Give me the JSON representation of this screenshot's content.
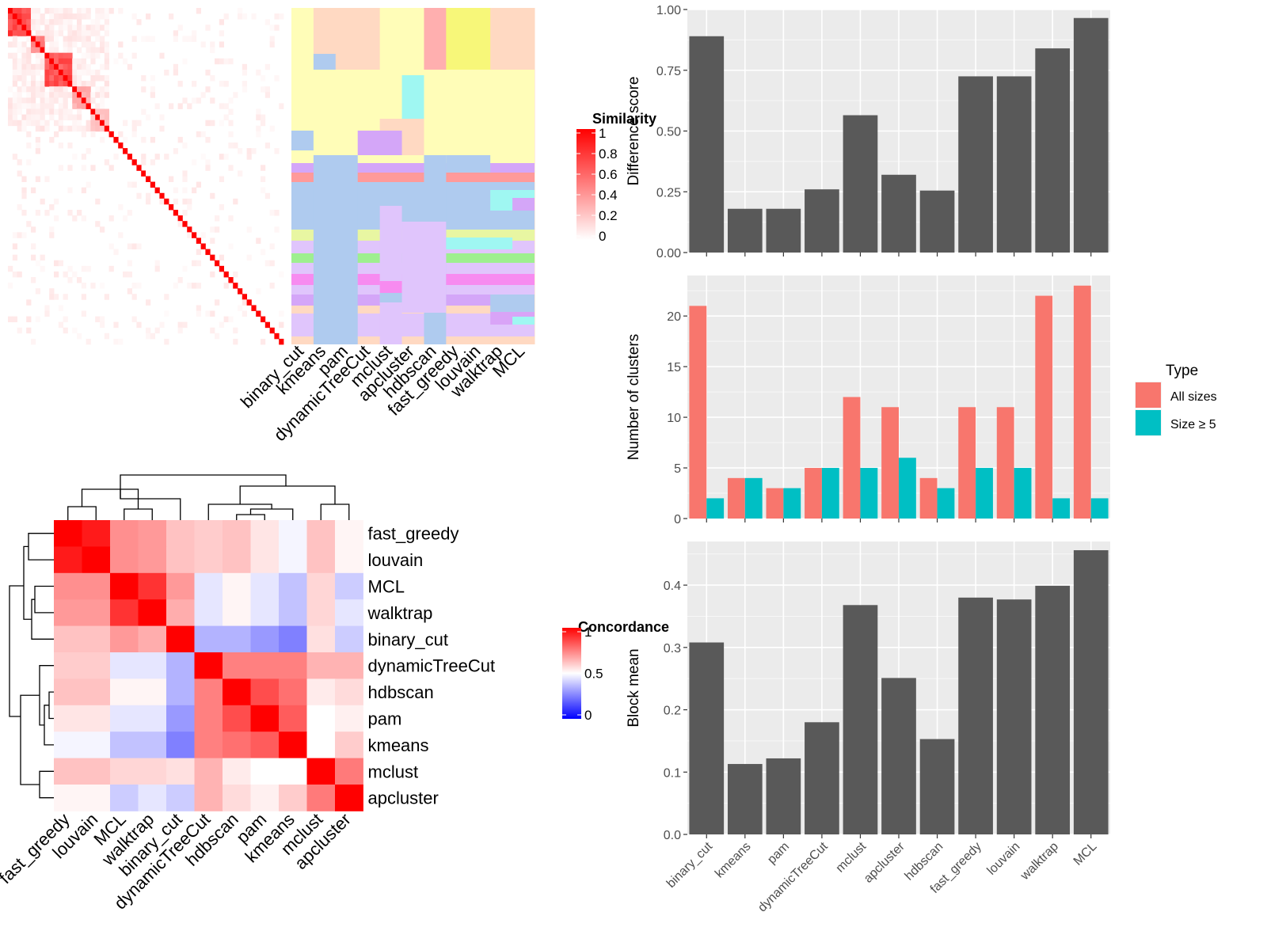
{
  "chart_data": [
    {
      "id": "similarity-heatmap",
      "type": "heatmap",
      "title": "",
      "legend_title": "Similarity",
      "legend_ticks": [
        "1",
        "0.8",
        "0.6",
        "0.4",
        "0.2",
        "0"
      ],
      "colors": {
        "high": "#FF0000",
        "low": "#FFFFFF"
      },
      "blocks": [
        {
          "size": 5,
          "level": 0.8
        },
        {
          "size": 3,
          "level": 0.55
        },
        {
          "size": 6,
          "level": 0.75
        },
        {
          "size": 4,
          "level": 0.35
        },
        {
          "size": 4,
          "level": 0.25
        }
      ],
      "total_rows": 60
    },
    {
      "id": "cluster-assignment-heatmap",
      "type": "heatmap",
      "title": "",
      "columns": [
        "binary_cut",
        "kmeans",
        "pam",
        "dynamicTreeCut",
        "mclust",
        "apcluster",
        "hdbscan",
        "fast_greedy",
        "louvain",
        "walktrap",
        "MCL"
      ]
    },
    {
      "id": "concordance-heatmap",
      "type": "heatmap",
      "title": "",
      "legend_title": "Concordance",
      "legend_ticks": [
        "1",
        "0.5",
        "0"
      ],
      "colors": {
        "high": "#FF0000",
        "mid": "#FFFFFF",
        "low": "#0000FF"
      },
      "rows": [
        "fast_greedy",
        "louvain",
        "MCL",
        "walktrap",
        "binary_cut",
        "dynamicTreeCut",
        "hdbscan",
        "pam",
        "kmeans",
        "mclust",
        "apcluster"
      ],
      "columns": [
        "fast_greedy",
        "louvain",
        "MCL",
        "walktrap",
        "binary_cut",
        "dynamicTreeCut",
        "hdbscan",
        "pam",
        "kmeans",
        "mclust",
        "apcluster"
      ],
      "values": [
        [
          1.0,
          0.95,
          0.72,
          0.7,
          0.62,
          0.6,
          0.62,
          0.55,
          0.48,
          0.62,
          0.52
        ],
        [
          0.95,
          1.0,
          0.72,
          0.7,
          0.62,
          0.6,
          0.62,
          0.55,
          0.48,
          0.62,
          0.52
        ],
        [
          0.72,
          0.72,
          1.0,
          0.9,
          0.7,
          0.45,
          0.52,
          0.45,
          0.38,
          0.58,
          0.4
        ],
        [
          0.7,
          0.7,
          0.9,
          1.0,
          0.66,
          0.45,
          0.52,
          0.45,
          0.38,
          0.58,
          0.45
        ],
        [
          0.62,
          0.62,
          0.7,
          0.66,
          1.0,
          0.35,
          0.35,
          0.3,
          0.25,
          0.56,
          0.4
        ],
        [
          0.6,
          0.6,
          0.45,
          0.45,
          0.35,
          1.0,
          0.75,
          0.75,
          0.75,
          0.65,
          0.65
        ],
        [
          0.62,
          0.62,
          0.52,
          0.52,
          0.35,
          0.75,
          1.0,
          0.85,
          0.78,
          0.54,
          0.57
        ],
        [
          0.55,
          0.55,
          0.45,
          0.45,
          0.3,
          0.75,
          0.85,
          1.0,
          0.82,
          0.5,
          0.53
        ],
        [
          0.48,
          0.48,
          0.38,
          0.38,
          0.25,
          0.75,
          0.78,
          0.82,
          1.0,
          0.5,
          0.6
        ],
        [
          0.62,
          0.62,
          0.58,
          0.58,
          0.56,
          0.65,
          0.54,
          0.5,
          0.5,
          1.0,
          0.76
        ],
        [
          0.52,
          0.52,
          0.4,
          0.45,
          0.4,
          0.65,
          0.57,
          0.53,
          0.6,
          0.76,
          1.0
        ]
      ]
    },
    {
      "id": "difference-score",
      "type": "bar",
      "title": "",
      "xlabel": "",
      "ylabel": "Difference score",
      "ylim": [
        0,
        1
      ],
      "yticks": [
        "0.00",
        "0.25",
        "0.50",
        "0.75",
        "1.00"
      ],
      "categories": [
        "binary_cut",
        "kmeans",
        "pam",
        "dynamicTreeCut",
        "mclust",
        "apcluster",
        "hdbscan",
        "fast_greedy",
        "louvain",
        "walktrap",
        "MCL"
      ],
      "values": [
        0.89,
        0.18,
        0.18,
        0.26,
        0.565,
        0.32,
        0.255,
        0.725,
        0.725,
        0.84,
        0.965
      ],
      "bar_color": "#595959"
    },
    {
      "id": "number-of-clusters",
      "type": "bar",
      "title": "",
      "xlabel": "",
      "ylabel": "Number of clusters",
      "ylim": [
        0,
        24
      ],
      "yticks": [
        "0",
        "5",
        "10",
        "15",
        "20"
      ],
      "categories": [
        "binary_cut",
        "kmeans",
        "pam",
        "dynamicTreeCut",
        "mclust",
        "apcluster",
        "hdbscan",
        "fast_greedy",
        "louvain",
        "walktrap",
        "MCL"
      ],
      "legend_title": "Type",
      "series": [
        {
          "name": "All sizes",
          "color": "#F8766D",
          "values": [
            21,
            4,
            3,
            5,
            12,
            11,
            4,
            11,
            11,
            22,
            23
          ]
        },
        {
          "name": "Size ≥ 5",
          "color": "#00BFC4",
          "values": [
            2,
            4,
            3,
            5,
            5,
            6,
            3,
            5,
            5,
            2,
            2
          ]
        }
      ]
    },
    {
      "id": "block-mean",
      "type": "bar",
      "title": "",
      "xlabel": "",
      "ylabel": "Block mean",
      "ylim": [
        0,
        0.47
      ],
      "yticks": [
        "0.0",
        "0.1",
        "0.2",
        "0.3",
        "0.4"
      ],
      "categories": [
        "binary_cut",
        "kmeans",
        "pam",
        "dynamicTreeCut",
        "mclust",
        "apcluster",
        "hdbscan",
        "fast_greedy",
        "louvain",
        "walktrap",
        "MCL"
      ],
      "values": [
        0.308,
        0.113,
        0.122,
        0.18,
        0.368,
        0.251,
        0.153,
        0.38,
        0.377,
        0.399,
        0.456
      ],
      "bar_color": "#595959"
    }
  ]
}
